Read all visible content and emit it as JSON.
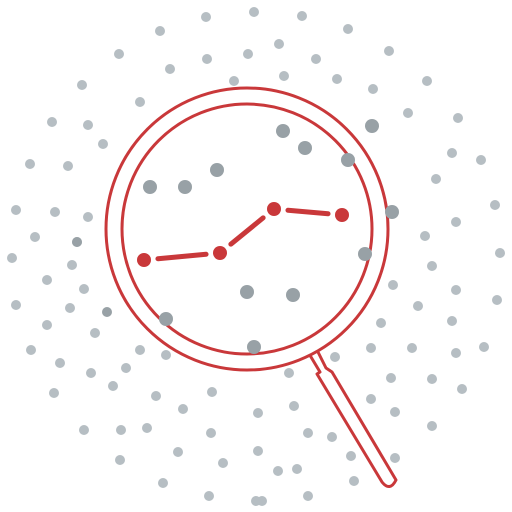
{
  "illustration": {
    "subject": "magnifying-glass-over-data-points",
    "colors": {
      "background": "#ffffff",
      "dot_light": "#b6bec3",
      "dot_dark": "#98a1a6",
      "accent_red": "#c9383a"
    },
    "icons": [
      "magnifying-glass-icon",
      "line-chart-icon",
      "scatter-dots"
    ]
  }
}
